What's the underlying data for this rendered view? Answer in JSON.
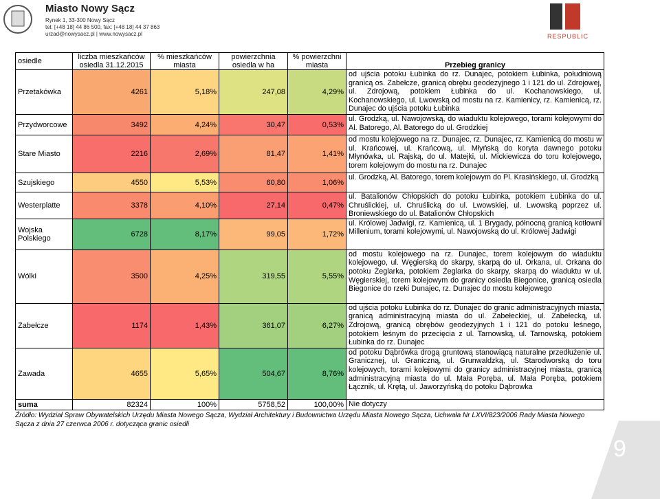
{
  "header": {
    "title": "Miasto Nowy Sącz",
    "address": [
      "Rynek 1, 33-300 Nowy Sącz",
      "tel: [+48 18] 44 86 500, fax: [+48 18] 44 37 863",
      "urzad@nowysacz.pl | www.nowysacz.pl"
    ],
    "brand": "RESPUBLIC"
  },
  "table": {
    "columns": [
      "osiedle",
      "liczba mieszkańców osiedla 31.12.2015",
      "% mieszkańców miasta",
      "powierzchnia osiedla w ha",
      "% powierzchni miasta",
      "Przebieg granicy"
    ],
    "rows": [
      {
        "name": "Przetakówka",
        "population": "4261",
        "population_pct": "5,18%",
        "area": "247,08",
        "area_pct": "4,29%",
        "colors": [
          "#f9a870",
          "#fed580",
          "#dfe283",
          "#c8db81"
        ],
        "boundary": "od ujścia potoku Łubinka do rz. Dunajec, potokiem Łubinka, południową granicą os. Zabełcze, granicą obrębu geodezyjnego 1 i 121 do ul. Zdrojowej, ul. Zdrojową, potokiem Łubinka do ul. Kochanowskiego, ul. Kochanowskiego, ul. Lwowską od mostu na rz. Kamienicy, rz. Kamienicą, rz. Dunajec do ujścia potoku Łubinka"
      },
      {
        "name": "Przydworcowe",
        "population": "3492",
        "population_pct": "4,24%",
        "area": "30,47",
        "area_pct": "0,53%",
        "colors": [
          "#f8886c",
          "#fcad72",
          "#f8766d",
          "#f86d6b"
        ],
        "boundary": "ul. Grodzką, ul. Nawojowską, do wiaduktu kolejowego, torami kolejowymi do Al. Batorego, Al. Batorego do ul. Grodzkiej"
      },
      {
        "name": "Stare Miasto",
        "population": "2216",
        "population_pct": "2,69%",
        "area": "81,47",
        "area_pct": "1,41%",
        "colors": [
          "#f86e6b",
          "#f8776d",
          "#fa9f73",
          "#fba373"
        ],
        "boundary": "od mostu kolejowego na rz. Dunajec, rz. Dunajec, rz. Kamienicą do mostu w ul. Krańcowej, ul. Krańcową, ul. Młyńską do koryta dawnego potoku Młynówka, ul. Rajską, do ul. Matejki, ul. Mickiewicza do toru kolejowego, torem kolejowym do mostu na rz. Dunajec"
      },
      {
        "name": "Szujskiego",
        "population": "4550",
        "population_pct": "5,53%",
        "area": "60,80",
        "area_pct": "1,06%",
        "colors": [
          "#fdcc7f",
          "#ffe984",
          "#f98c6f",
          "#f98c6f"
        ],
        "boundary": "ul. Grodzką, Al. Batorego, torem kolejowym do Pl. Krasińskiego, ul. Grodzką"
      },
      {
        "name": "Westerplatte",
        "population": "3378",
        "population_pct": "4,10%",
        "area": "27,14",
        "area_pct": "0,47%",
        "colors": [
          "#f98a6e",
          "#fa9d71",
          "#f8696b",
          "#f8696b"
        ],
        "boundary": "ul. Batalionów Chłopskich do potoku Łubinka, potokiem Łubinka do ul. Chruślickiej, ul. Chruślicką do ul. Lwowskiej, ul. Lwowską poprzez ul. Broniewskiego do ul. Batalionów Chłopskich"
      },
      {
        "name": "Wojska Polskiego",
        "population": "6728",
        "population_pct": "8,17%",
        "area": "99,05",
        "area_pct": "1,72%",
        "colors": [
          "#63be7b",
          "#63be7b",
          "#fcb878",
          "#fcb878"
        ],
        "boundary": "ul. Królowej Jadwigi, rz. Kamienicą, ul. 1 Brygady, północną granicą kotłowni Millenium, torami kolejowymi, ul. Nawojowską do ul. Królowej Jadwigi"
      },
      {
        "name": "Wólki",
        "population": "3500",
        "population_pct": "4,25%",
        "area": "319,55",
        "area_pct": "5,55%",
        "colors": [
          "#f98d6f",
          "#fbb074",
          "#b0d580",
          "#b0d580"
        ],
        "boundary": "od mostu kolejowego na rz. Dunajec, torem kolejowym do wiaduktu kolejowego, ul. Węgierską do skarpy, skarpą do ul. Orkana, ul. Orkana do potoku Żeglarka, potokiem Żeglarka do skarpy, skarpą do wiaduktu w ul. Węgierskiej, torem kolejowym do granicy osiedla Biegonice, granicą osiedla Biegonice do rzeki Dunajec, rz. Dunajec do mostu kolejowego"
      },
      {
        "name": "Zabełcze",
        "population": "1174",
        "population_pct": "1,43%",
        "area": "361,07",
        "area_pct": "6,27%",
        "colors": [
          "#f8696b",
          "#f8696b",
          "#a2d07f",
          "#a2d07f"
        ],
        "boundary": "od ujścia potoku Łubinka do rz. Dunajec do granic administracyjnych miasta, granicą administracyjną miasta do ul. Zabełeckiej, ul. Zabełecką, ul. Zdrojową, granicą obrębów geodezyjnych 1 i 121 do potoku leśnego, potokiem leśnym do przecięcia z ul. Tarnowską, ul. Tarnowską, potokiem Łubinka do rz. Dunajec"
      },
      {
        "name": "Zawada",
        "population": "4655",
        "population_pct": "5,65%",
        "area": "504,67",
        "area_pct": "8,76%",
        "colors": [
          "#fed680",
          "#ffe984",
          "#63be7b",
          "#63be7b"
        ],
        "boundary": "od potoku Dąbrówka drogą gruntową stanowiącą naturalne przedłużenie ul. Granicznej, ul. Graniczną, ul. Grunwaldzką, ul. Starodworską do toru kolejowych, torami kolejowymi do granicy administracyjnej miasta, granicą administracyjną miasta do ul. Mała Poręba, ul. Mała Poręba, potokiem Łącznik, ul. Krętą, ul. Jaworzyńską do potoku Dąbrowka"
      },
      {
        "name": "suma",
        "population": "82324",
        "population_pct": "100%",
        "area": "5758,52",
        "area_pct": "100,00%",
        "colors": [
          "#ffffff",
          "#ffffff",
          "#ffffff",
          "#ffffff"
        ],
        "boundary": "Nie dotyczy"
      }
    ]
  },
  "source": "Źródło: Wydział Spraw Obywatelskich Urzędu Miasta Nowego Sącza, Wydział Architektury i Budownictwa Urzędu Miasta Nowego Sącza, Uchwała Nr LXVI/823/2006 Rady Miasta Nowego Sącza z dnia 27 czerwca 2006 r. dotycząca granic osiedli",
  "page_number": "9"
}
